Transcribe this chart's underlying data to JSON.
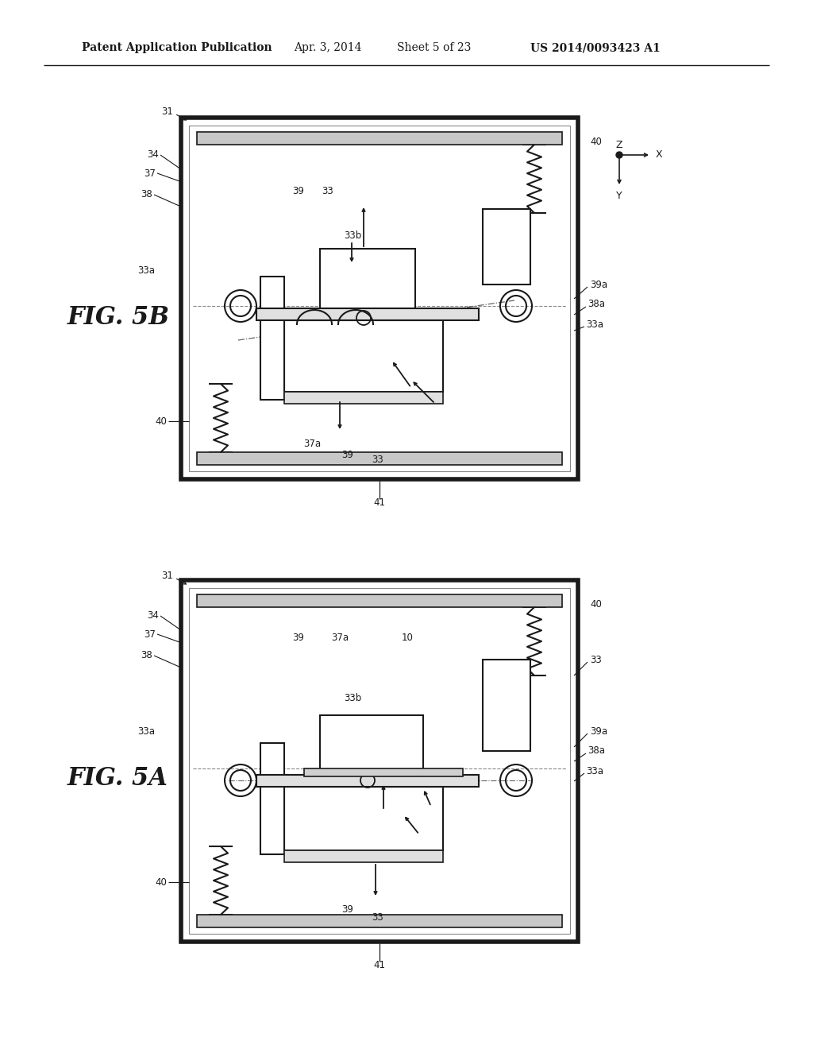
{
  "bg_color": "#ffffff",
  "line_color": "#1a1a1a",
  "header_text": "Patent Application Publication",
  "header_date": "Apr. 3, 2014",
  "header_sheet": "Sheet 5 of 23",
  "header_patent": "US 2014/0093423 A1",
  "fig_label_5B": "FIG. 5B",
  "fig_label_5A": "FIG. 5A",
  "gray_fill": "#c8c8c8",
  "light_gray": "#e0e0e0"
}
